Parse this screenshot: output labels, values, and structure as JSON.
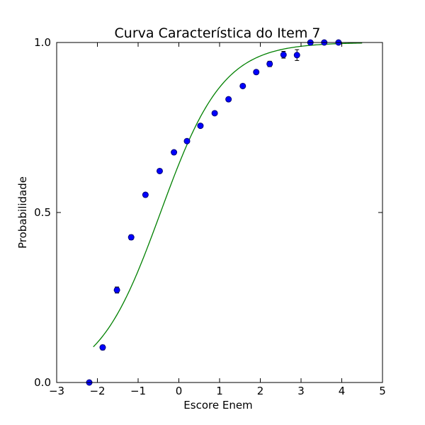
{
  "chart_data": {
    "type": "scatter",
    "title": "Curva Característica do Item 7",
    "xlabel": "Escore Enem",
    "ylabel": "Probabilidade",
    "xlim": [
      -3,
      5
    ],
    "ylim": [
      0,
      1
    ],
    "grid": false,
    "x_ticks": [
      -3,
      -2,
      -1,
      0,
      1,
      2,
      3,
      4,
      5
    ],
    "x_tick_labels": [
      "−3",
      "−2",
      "−1",
      "0",
      "1",
      "2",
      "3",
      "4",
      "5"
    ],
    "y_ticks": [
      0,
      0.5,
      1
    ],
    "y_tick_labels": [
      "0.0",
      "0.5",
      "1.0"
    ],
    "points": [
      {
        "x": -2.2,
        "y": 0.0,
        "err": 0.003
      },
      {
        "x": -1.87,
        "y": 0.103,
        "err": 0.007
      },
      {
        "x": -1.52,
        "y": 0.272,
        "err": 0.009
      },
      {
        "x": -1.17,
        "y": 0.427,
        "err": 0.007
      },
      {
        "x": -0.82,
        "y": 0.552,
        "err": 0.006
      },
      {
        "x": -0.47,
        "y": 0.622,
        "err": 0.005
      },
      {
        "x": -0.12,
        "y": 0.677,
        "err": 0.004
      },
      {
        "x": 0.2,
        "y": 0.71,
        "err": 0.004
      },
      {
        "x": 0.53,
        "y": 0.755,
        "err": 0.004
      },
      {
        "x": 0.88,
        "y": 0.792,
        "err": 0.004
      },
      {
        "x": 1.22,
        "y": 0.833,
        "err": 0.004
      },
      {
        "x": 1.57,
        "y": 0.872,
        "err": 0.005
      },
      {
        "x": 1.9,
        "y": 0.913,
        "err": 0.006
      },
      {
        "x": 2.23,
        "y": 0.937,
        "err": 0.008
      },
      {
        "x": 2.57,
        "y": 0.964,
        "err": 0.01
      },
      {
        "x": 2.9,
        "y": 0.963,
        "err": 0.016
      },
      {
        "x": 3.23,
        "y": 1.0,
        "err": 0.003
      },
      {
        "x": 3.57,
        "y": 1.0,
        "err": 0.003
      },
      {
        "x": 3.92,
        "y": 1.0,
        "err": 0.003
      }
    ],
    "curve": {
      "model": "logistic",
      "a": 1.3,
      "b": -0.45,
      "x_range": [
        -2.1,
        4.5
      ]
    },
    "colors": {
      "points": "#0000ff",
      "points_edge": "#00007a",
      "curve": "#008000",
      "errorbar": "#000000",
      "frame": "#000000"
    }
  }
}
